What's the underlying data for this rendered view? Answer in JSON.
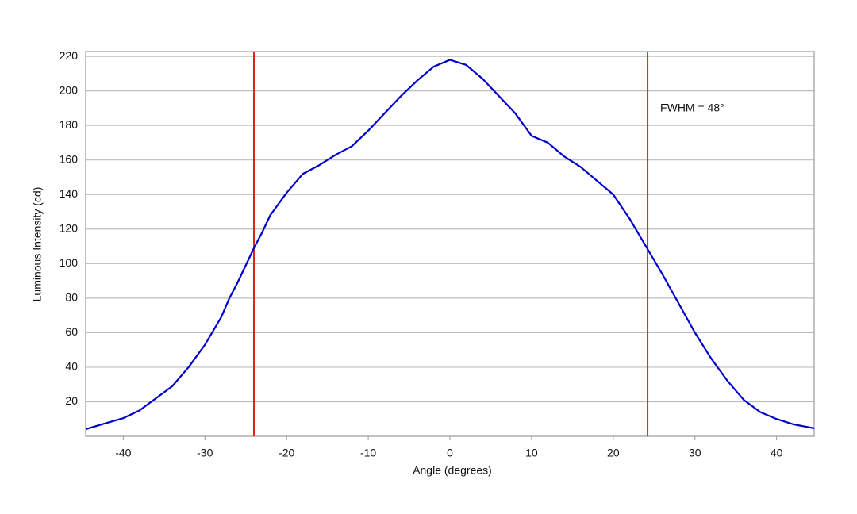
{
  "chart_data": {
    "type": "line",
    "xlabel": "Angle (degrees)",
    "ylabel": "Luminous Intensity (cd)",
    "x": [
      -44.6,
      -42,
      -40,
      -38,
      -36,
      -34,
      -32,
      -30,
      -28,
      -27,
      -26,
      -25,
      -24,
      -23,
      -22,
      -20,
      -18,
      -16,
      -14,
      -12,
      -10,
      -8,
      -6,
      -4,
      -2,
      0,
      2,
      4,
      6,
      8,
      10,
      12,
      14,
      16,
      18,
      20,
      22,
      24,
      26,
      28,
      30,
      32,
      34,
      36,
      38,
      40,
      42,
      44.6
    ],
    "series": [
      {
        "color": "#0000cc",
        "values": [
          4.1,
          7.8,
          10.5,
          15,
          22,
          29,
          40,
          53,
          69,
          80,
          89,
          99,
          109,
          118,
          128,
          141,
          152,
          157,
          163,
          168,
          177,
          187,
          197,
          206,
          214,
          218,
          215,
          207,
          197,
          187,
          174,
          170,
          162,
          156,
          148,
          140,
          126,
          110,
          94,
          77,
          60,
          45,
          32,
          21,
          14,
          10,
          7,
          4.6
        ]
      }
    ],
    "vlines": [
      -24,
      24.2
    ],
    "vline_color": "#dd2222",
    "annotation": "FWHM = 48°",
    "xlim": [
      -44.6,
      44.6
    ],
    "ylim": [
      0,
      222.8
    ],
    "xticks": [
      -40,
      -30,
      -20,
      -10,
      0,
      10,
      20,
      30,
      40
    ],
    "yticks": [
      20,
      40,
      60,
      80,
      100,
      120,
      140,
      160,
      180,
      200,
      220
    ],
    "grid": true
  }
}
